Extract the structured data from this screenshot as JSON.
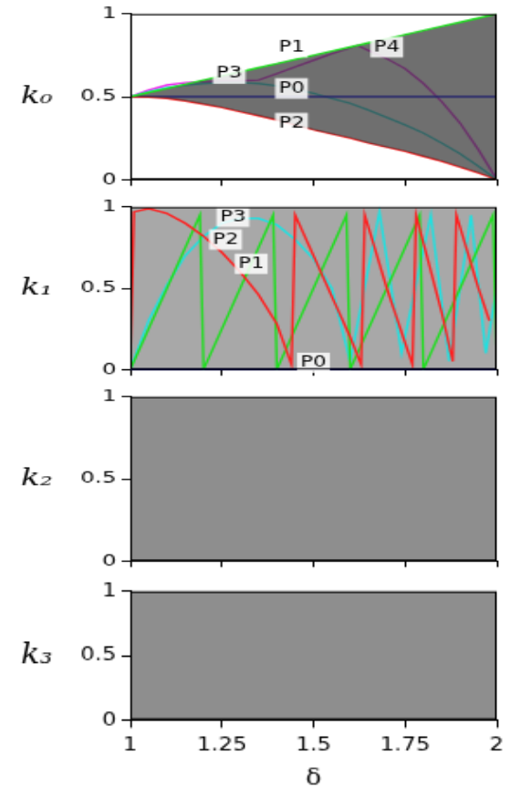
{
  "chart_data": [
    {
      "type": "line",
      "y_label": "k₀",
      "xlim": [
        1,
        2
      ],
      "xticks": [
        1,
        1.25,
        1.5,
        1.75,
        2
      ],
      "ylim": [
        0,
        1
      ],
      "yticks": [
        0,
        0.5,
        1
      ],
      "tick_labels": "y",
      "series": [
        {
          "color": "#22dd22",
          "x": [
            1,
            1.05,
            1.1,
            1.15,
            1.2,
            1.25,
            1.3,
            1.35,
            1.4,
            1.45,
            1.5,
            1.55,
            1.6,
            1.65,
            1.7,
            1.75,
            1.8,
            1.85,
            1.9,
            1.95,
            2
          ],
          "values": [
            0.5,
            0.525,
            0.55,
            0.575,
            0.6,
            0.625,
            0.65,
            0.675,
            0.7,
            0.725,
            0.75,
            0.775,
            0.8,
            0.825,
            0.85,
            0.875,
            0.9,
            0.925,
            0.95,
            0.975,
            1
          ]
        },
        {
          "color": "#ff2020",
          "x": [
            1,
            1.05,
            1.1,
            1.15,
            1.2,
            1.25,
            1.3,
            1.35,
            1.4,
            1.45,
            1.5,
            1.55,
            1.6,
            1.65,
            1.7,
            1.75,
            1.8,
            1.85,
            1.9,
            1.95,
            2
          ],
          "values": [
            0.5,
            0.497,
            0.49,
            0.475,
            0.455,
            0.435,
            0.41,
            0.385,
            0.36,
            0.33,
            0.3,
            0.275,
            0.25,
            0.22,
            0.195,
            0.17,
            0.14,
            0.11,
            0.075,
            0.04,
            0
          ]
        },
        {
          "color": "#0000ee",
          "x": [
            1,
            2
          ],
          "values": [
            0.5,
            0.5
          ]
        },
        {
          "color": "#22e0e0",
          "x": [
            1,
            1.05,
            1.1,
            1.15,
            1.2,
            1.25,
            1.3,
            1.35,
            1.4,
            1.45,
            1.5,
            1.55,
            1.6,
            1.65,
            1.7,
            1.75,
            1.8,
            1.85,
            1.9,
            1.95,
            2
          ],
          "values": [
            0.5,
            0.53,
            0.555,
            0.57,
            0.58,
            0.585,
            0.585,
            0.58,
            0.565,
            0.545,
            0.52,
            0.49,
            0.46,
            0.42,
            0.375,
            0.33,
            0.28,
            0.22,
            0.155,
            0.08,
            0
          ]
        },
        {
          "color": "#ee22ee",
          "x": [
            1,
            1.05,
            1.1,
            1.15,
            1.2,
            1.25,
            1.3,
            1.35,
            1.4,
            1.45,
            1.5,
            1.55,
            1.6,
            1.62,
            1.65,
            1.7,
            1.75,
            1.8,
            1.85,
            1.9,
            1.95,
            2
          ],
          "values": [
            0.5,
            0.54,
            0.57,
            0.585,
            0.59,
            0.595,
            0.595,
            0.6,
            0.64,
            0.68,
            0.72,
            0.76,
            0.795,
            0.81,
            0.78,
            0.73,
            0.67,
            0.58,
            0.47,
            0.34,
            0.18,
            0
          ]
        },
        {
          "color": "#22dd22",
          "x": [
            2,
            2
          ],
          "values": [
            1,
            0
          ]
        }
      ],
      "annotations": [
        {
          "text": "P1",
          "x": 1.44,
          "y": 0.8
        },
        {
          "text": "P3",
          "x": 1.27,
          "y": 0.64
        },
        {
          "text": "P0",
          "x": 1.44,
          "y": 0.55
        },
        {
          "text": "P2",
          "x": 1.44,
          "y": 0.34
        },
        {
          "text": "P4",
          "x": 1.7,
          "y": 0.8
        }
      ]
    },
    {
      "type": "line",
      "y_label": "k₁",
      "xlim": [
        1,
        2
      ],
      "xticks": [
        1,
        1.25,
        1.5,
        1.75,
        2
      ],
      "ylim": [
        0,
        1
      ],
      "yticks": [
        0,
        0.5,
        1
      ],
      "tick_labels": "y",
      "series": [
        {
          "color": "#0000ee",
          "x": [
            1,
            2
          ],
          "values": [
            0,
            0
          ]
        },
        {
          "color": "#ff2020",
          "x": [
            1,
            1.01,
            1.05,
            1.1,
            1.15,
            1.2,
            1.25,
            1.3,
            1.35,
            1.4,
            1.44,
            1.45,
            1.5,
            1.55,
            1.6,
            1.63,
            1.64,
            1.7,
            1.77,
            1.78,
            1.85,
            1.88,
            1.89,
            1.95,
            1.98
          ],
          "values": [
            0,
            0.97,
            0.99,
            0.96,
            0.9,
            0.82,
            0.72,
            0.6,
            0.46,
            0.28,
            0.03,
            0.95,
            0.7,
            0.45,
            0.2,
            0.03,
            0.95,
            0.5,
            0.03,
            0.95,
            0.35,
            0.05,
            0.95,
            0.5,
            0.3
          ]
        },
        {
          "color": "#22dd22",
          "x": [
            1,
            1.19,
            1.2,
            1.39,
            1.4,
            1.59,
            1.6,
            1.79,
            1.8,
            1.99,
            2
          ],
          "values": [
            0,
            0.95,
            0,
            0.95,
            0,
            0.95,
            0,
            0.95,
            0,
            0.95,
            0
          ]
        },
        {
          "color": "#22e0e0",
          "x": [
            1,
            1.05,
            1.1,
            1.15,
            1.2,
            1.25,
            1.3,
            1.35,
            1.4,
            1.45,
            1.5,
            1.55,
            1.6,
            1.68,
            1.74,
            1.82,
            1.87,
            1.93,
            1.97,
            2
          ],
          "values": [
            0,
            0.3,
            0.52,
            0.7,
            0.82,
            0.9,
            0.93,
            0.93,
            0.89,
            0.8,
            0.68,
            0.5,
            0.05,
            0.97,
            0.1,
            0.95,
            0.05,
            0.95,
            0.1,
            0.5
          ]
        }
      ],
      "annotations": [
        {
          "text": "P3",
          "x": 1.28,
          "y": 0.94
        },
        {
          "text": "P2",
          "x": 1.26,
          "y": 0.8
        },
        {
          "text": "P1",
          "x": 1.33,
          "y": 0.65
        },
        {
          "text": "P0",
          "x": 1.5,
          "y": 0.04
        }
      ]
    },
    {
      "type": "line",
      "y_label": "k₂",
      "xlim": [
        1,
        2
      ],
      "xticks": [
        1,
        1.25,
        1.5,
        1.75,
        2
      ],
      "ylim": [
        0,
        1
      ],
      "yticks": [
        0,
        0.5,
        1
      ],
      "tick_labels": "y",
      "series": [],
      "annotations": []
    },
    {
      "type": "line",
      "y_label": "k₃",
      "x_label": "δ",
      "xlim": [
        1,
        2
      ],
      "xticks": [
        1,
        1.25,
        1.5,
        1.75,
        2
      ],
      "ylim": [
        0,
        1
      ],
      "yticks": [
        0,
        0.5,
        1
      ],
      "series": [],
      "annotations": []
    }
  ]
}
